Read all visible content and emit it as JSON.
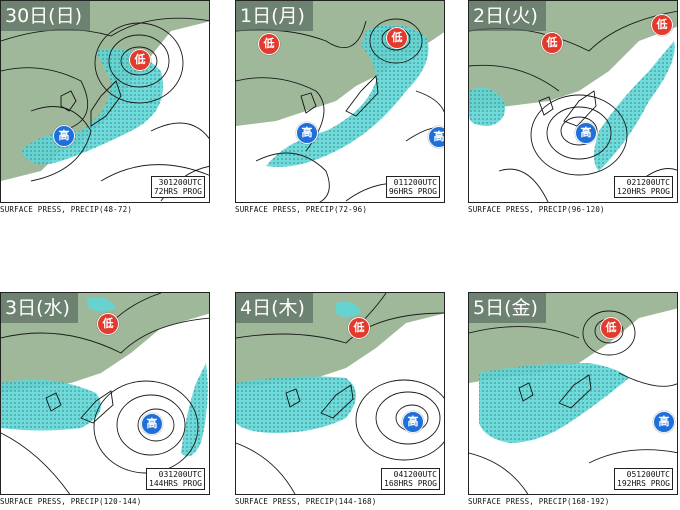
{
  "panels": [
    {
      "day_label": "30日(日)",
      "stamp_line1": "301200UTC",
      "stamp_line2": "72HRS PROG",
      "caption": "SURFACE PRESS, PRECIP(48-72)",
      "low_symbol": "低",
      "high_symbol": "高"
    },
    {
      "day_label": "1日(月)",
      "stamp_line1": "011200UTC",
      "stamp_line2": "96HRS PROG",
      "caption": "SURFACE PRESS, PRECIP(72-96)",
      "low_symbol": "低",
      "high_symbol": "高"
    },
    {
      "day_label": "2日(火)",
      "stamp_line1": "021200UTC",
      "stamp_line2": "120HRS PROG",
      "caption": "SURFACE PRESS, PRECIP(96-120)",
      "low_symbol": "低",
      "high_symbol": "高"
    },
    {
      "day_label": "3日(水)",
      "stamp_line1": "031200UTC",
      "stamp_line2": "144HRS PROG",
      "caption": "SURFACE PRESS, PRECIP(120-144)",
      "low_symbol": "低",
      "high_symbol": "高"
    },
    {
      "day_label": "4日(木)",
      "stamp_line1": "041200UTC",
      "stamp_line2": "168HRS PROG",
      "caption": "SURFACE PRESS, PRECIP(144-168)",
      "low_symbol": "低",
      "high_symbol": "高"
    },
    {
      "day_label": "5日(金)",
      "stamp_line1": "051200UTC",
      "stamp_line2": "192HRS PROG",
      "caption": "SURFACE PRESS, PRECIP(168-192)",
      "low_symbol": "低",
      "high_symbol": "高"
    }
  ],
  "colors": {
    "land": "#9fb89a",
    "precip": "#5fd6d6",
    "isobar": "#1a1a1a",
    "low": "#e23b2e",
    "high": "#1e6fd9"
  }
}
